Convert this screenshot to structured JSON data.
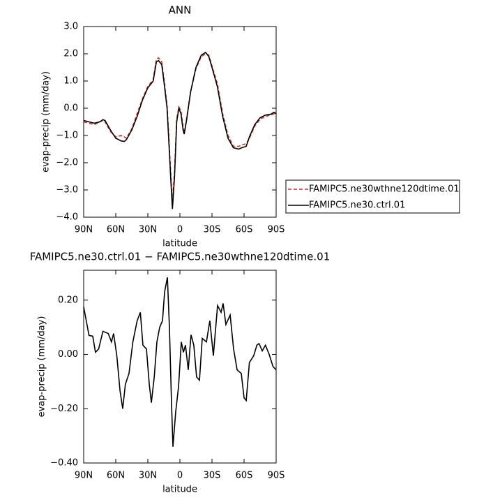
{
  "chart_data": [
    {
      "type": "line",
      "title": "ANN",
      "x_label": "latitude",
      "y_label": "evap-precip (mm/day)",
      "x": [
        90,
        85,
        80,
        75,
        72,
        70,
        65,
        60,
        55,
        52,
        50,
        45,
        40,
        35,
        30,
        25,
        22,
        20,
        17,
        15,
        12,
        10,
        8,
        7,
        5,
        3,
        1,
        -1,
        -3,
        -4,
        -6,
        -10,
        -15,
        -20,
        -24,
        -27,
        -30,
        -35,
        -40,
        -45,
        -50,
        -55,
        -58,
        -62,
        -65,
        -70,
        -75,
        -80,
        -85,
        -88,
        -90
      ],
      "series": [
        {
          "name": "FAMIPC5.ne30wthne120dtime.01",
          "color": "#e8231c",
          "dash": true,
          "values": [
            -0.5,
            -0.55,
            -0.6,
            -0.5,
            -0.45,
            -0.5,
            -0.85,
            -1.05,
            -1.0,
            -1.05,
            -1.1,
            -0.75,
            -0.2,
            0.35,
            0.8,
            1.05,
            1.8,
            1.85,
            1.7,
            1.1,
            0.1,
            -1.3,
            -2.8,
            -3.4,
            -2.3,
            -0.4,
            0.05,
            -0.1,
            -0.7,
            -0.9,
            -0.45,
            0.6,
            1.45,
            1.9,
            2.0,
            1.95,
            1.55,
            0.9,
            -0.2,
            -1.0,
            -1.4,
            -1.4,
            -1.35,
            -1.3,
            -1.1,
            -0.65,
            -0.4,
            -0.3,
            -0.25,
            -0.2,
            -0.2
          ]
        },
        {
          "name": "FAMIPC5.ne30.ctrl.01",
          "color": "#000000",
          "dash": false,
          "values": [
            -0.45,
            -0.5,
            -0.55,
            -0.5,
            -0.42,
            -0.45,
            -0.8,
            -1.1,
            -1.2,
            -1.22,
            -1.15,
            -0.8,
            -0.3,
            0.3,
            0.75,
            1.0,
            1.7,
            1.75,
            1.6,
            1.0,
            0.0,
            -1.5,
            -3.0,
            -3.7,
            -2.5,
            -0.5,
            0.0,
            -0.2,
            -0.8,
            -0.95,
            -0.5,
            0.6,
            1.5,
            1.95,
            2.05,
            1.9,
            1.5,
            0.8,
            -0.3,
            -1.1,
            -1.45,
            -1.5,
            -1.45,
            -1.4,
            -1.05,
            -0.6,
            -0.35,
            -0.25,
            -0.22,
            -0.15,
            -0.2
          ]
        }
      ],
      "xlim": [
        90,
        -90
      ],
      "xticks": [
        {
          "value": 90,
          "label": "90N"
        },
        {
          "value": 60,
          "label": "60N"
        },
        {
          "value": 30,
          "label": "30N"
        },
        0,
        {
          "value": -30,
          "label": "30S"
        },
        {
          "value": -60,
          "label": "60S"
        },
        {
          "value": -90,
          "label": "90S"
        }
      ],
      "ylim": [
        -4,
        3
      ],
      "yticks": [
        {
          "value": 3,
          "label": "3.0"
        },
        {
          "value": 2,
          "label": "2.0"
        },
        {
          "value": 1,
          "label": "1.0"
        },
        {
          "value": 0,
          "label": "0.0"
        },
        {
          "value": -1,
          "label": "−1.0"
        },
        {
          "value": -2,
          "label": "−2.0"
        },
        {
          "value": -3,
          "label": "−3.0"
        },
        {
          "value": -4,
          "label": "−4.0"
        }
      ],
      "legend": "right"
    },
    {
      "type": "line",
      "title": "FAMIPC5.ne30.ctrl.01 − FAMIPC5.ne30wthne120dtime.01",
      "x_label": "latitude",
      "y_label": "evap-precip (mm/day)",
      "x": [
        90,
        85,
        81.5,
        79,
        76,
        72,
        67,
        64,
        62,
        59,
        56,
        53.5,
        51,
        47.6,
        44,
        40,
        37,
        34.6,
        31.3,
        28.7,
        26.7,
        24,
        21.5,
        18.9,
        16.3,
        14.3,
        11.7,
        9.8,
        7.8,
        6.5,
        3.9,
        1.3,
        -1.3,
        -3.3,
        -5.2,
        -7.8,
        -10.4,
        -13,
        -15.6,
        -18.3,
        -20.9,
        -24.8,
        -28,
        -31.3,
        -35.2,
        -38.5,
        -40.4,
        -43,
        -47,
        -50.2,
        -53.5,
        -57.4,
        -60,
        -62,
        -65,
        -69,
        -72,
        -74,
        -77,
        -80,
        -83.5,
        -87,
        -90
      ],
      "color": "#000000",
      "values": [
        0.175,
        0.07,
        0.067,
        0.008,
        0.02,
        0.085,
        0.077,
        0.046,
        0.077,
        -0.005,
        -0.134,
        -0.2,
        -0.11,
        -0.07,
        0.046,
        0.124,
        0.155,
        0.034,
        0.02,
        -0.108,
        -0.178,
        -0.083,
        0.046,
        0.1,
        0.124,
        0.23,
        0.284,
        0.1,
        -0.186,
        -0.34,
        -0.21,
        -0.12,
        0.046,
        0.008,
        0.034,
        -0.057,
        0.072,
        0.034,
        -0.083,
        -0.095,
        0.059,
        0.046,
        0.124,
        -0.005,
        0.18,
        0.155,
        0.188,
        0.11,
        0.145,
        0.02,
        -0.057,
        -0.07,
        -0.16,
        -0.17,
        -0.03,
        -0.005,
        0.034,
        0.04,
        0.013,
        0.034,
        0,
        -0.044,
        -0.057
      ],
      "xlim": [
        90,
        -90
      ],
      "xticks": [
        {
          "value": 90,
          "label": "90N"
        },
        {
          "value": 60,
          "label": "60N"
        },
        {
          "value": 30,
          "label": "30N"
        },
        0,
        {
          "value": -30,
          "label": "30S"
        },
        {
          "value": -60,
          "label": "60S"
        },
        {
          "value": -90,
          "label": "90S"
        }
      ],
      "ylim": [
        -0.4,
        0.31
      ],
      "yticks": [
        {
          "value": 0.2,
          "label": "0.20"
        },
        {
          "value": 0,
          "label": "0.00"
        },
        {
          "value": -0.2,
          "label": "−0.20"
        },
        {
          "value": -0.4,
          "label": "−0.40"
        }
      ]
    }
  ]
}
